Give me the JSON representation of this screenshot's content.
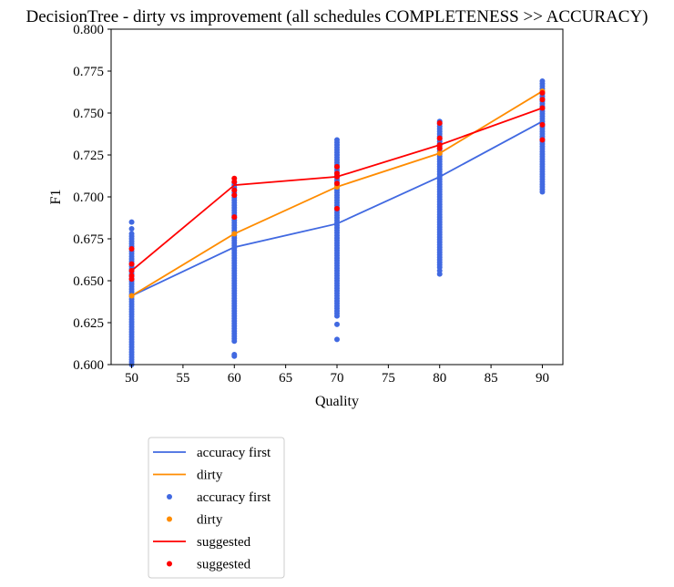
{
  "chart_data": {
    "type": "line",
    "title": "DecisionTree - dirty vs improvement (all schedules COMPLETENESS >> ACCURACY)",
    "xlabel": "Quality",
    "ylabel": "F1",
    "xlim": [
      48,
      92
    ],
    "ylim": [
      0.6,
      0.8
    ],
    "xticks": [
      "50",
      "55",
      "60",
      "65",
      "70",
      "75",
      "80",
      "85",
      "90"
    ],
    "yticks": [
      "0.600",
      "0.625",
      "0.650",
      "0.675",
      "0.700",
      "0.725",
      "0.750",
      "0.775",
      "0.800"
    ],
    "grid": false,
    "legend_position": "below plot, left",
    "lines": [
      {
        "name": "accuracy first",
        "color": "#4169e1",
        "x": [
          50,
          60,
          70,
          80,
          90
        ],
        "y": [
          0.641,
          0.67,
          0.684,
          0.712,
          0.745
        ]
      },
      {
        "name": "dirty",
        "color": "#ff8c00",
        "x": [
          50,
          60,
          70,
          80,
          90
        ],
        "y": [
          0.641,
          0.678,
          0.706,
          0.726,
          0.763
        ]
      },
      {
        "name": "suggested",
        "color": "#ff0000",
        "x": [
          50,
          60,
          70,
          80,
          90
        ],
        "y": [
          0.656,
          0.707,
          0.712,
          0.731,
          0.753
        ]
      }
    ],
    "scatter": [
      {
        "name": "accuracy first",
        "color": "#4169e1",
        "columns": [
          {
            "x": 50,
            "ymin": 0.6,
            "ymax": 0.678,
            "outliers": [
              0.681,
              0.685
            ]
          },
          {
            "x": 60,
            "ymin": 0.614,
            "ymax": 0.709,
            "outliers": [
              0.605,
              0.606
            ]
          },
          {
            "x": 70,
            "ymin": 0.629,
            "ymax": 0.735,
            "outliers": [
              0.615,
              0.624
            ]
          },
          {
            "x": 80,
            "ymin": 0.658,
            "ymax": 0.746,
            "outliers": [
              0.654,
              0.656
            ]
          },
          {
            "x": 90,
            "ymin": 0.703,
            "ymax": 0.77,
            "outliers": []
          }
        ]
      },
      {
        "name": "dirty",
        "color": "#ff8c00",
        "points": [
          {
            "x": 50,
            "y": 0.641
          },
          {
            "x": 60,
            "y": 0.678
          },
          {
            "x": 70,
            "y": 0.706
          },
          {
            "x": 80,
            "y": 0.726
          },
          {
            "x": 90,
            "y": 0.763
          }
        ]
      },
      {
        "name": "suggested",
        "color": "#ff0000",
        "points": [
          {
            "x": 50,
            "y": 0.669
          },
          {
            "x": 50,
            "y": 0.66
          },
          {
            "x": 50,
            "y": 0.656
          },
          {
            "x": 50,
            "y": 0.653
          },
          {
            "x": 50,
            "y": 0.651
          },
          {
            "x": 60,
            "y": 0.711
          },
          {
            "x": 60,
            "y": 0.709
          },
          {
            "x": 60,
            "y": 0.704
          },
          {
            "x": 60,
            "y": 0.701
          },
          {
            "x": 60,
            "y": 0.688
          },
          {
            "x": 70,
            "y": 0.718
          },
          {
            "x": 70,
            "y": 0.714
          },
          {
            "x": 70,
            "y": 0.712
          },
          {
            "x": 70,
            "y": 0.708
          },
          {
            "x": 70,
            "y": 0.693
          },
          {
            "x": 80,
            "y": 0.744
          },
          {
            "x": 80,
            "y": 0.735
          },
          {
            "x": 80,
            "y": 0.731
          },
          {
            "x": 80,
            "y": 0.729
          },
          {
            "x": 90,
            "y": 0.762
          },
          {
            "x": 90,
            "y": 0.758
          },
          {
            "x": 90,
            "y": 0.753
          },
          {
            "x": 90,
            "y": 0.743
          },
          {
            "x": 90,
            "y": 0.734
          }
        ]
      }
    ],
    "legend": [
      {
        "label": "accuracy first",
        "kind": "line",
        "color": "#4169e1"
      },
      {
        "label": "dirty",
        "kind": "line",
        "color": "#ff8c00"
      },
      {
        "label": "accuracy first",
        "kind": "marker",
        "color": "#4169e1"
      },
      {
        "label": "dirty",
        "kind": "marker",
        "color": "#ff8c00"
      },
      {
        "label": "suggested",
        "kind": "line",
        "color": "#ff0000"
      },
      {
        "label": "suggested",
        "kind": "marker",
        "color": "#ff0000"
      }
    ]
  }
}
